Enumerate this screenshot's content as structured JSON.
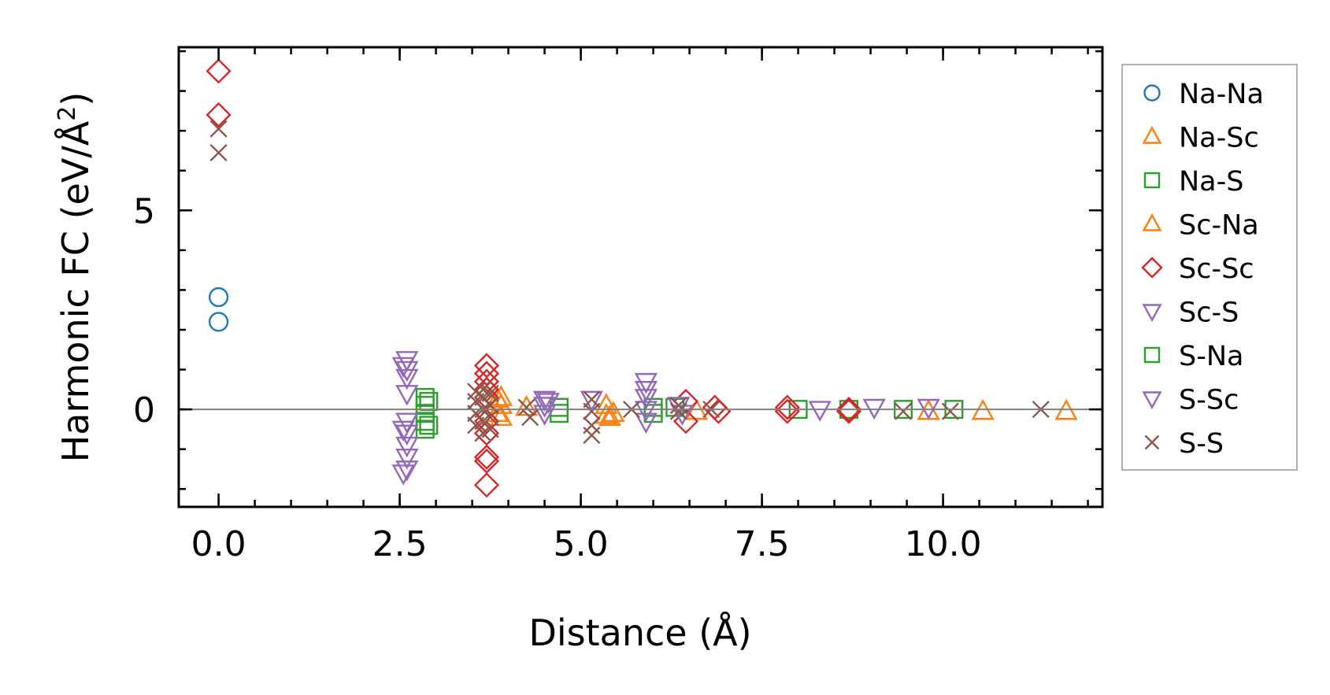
{
  "chart_data": {
    "type": "scatter",
    "title": "",
    "xlabel": "Distance (Å)",
    "ylabel_main": "Harmonic FC (eV/Å",
    "ylabel_sup": "2",
    "ylabel_close": ")",
    "xlim": [
      -0.55,
      12.2
    ],
    "ylim": [
      -2.45,
      9.1
    ],
    "xticks": [
      {
        "value": 0.0,
        "label": "0.0"
      },
      {
        "value": 2.5,
        "label": "2.5"
      },
      {
        "value": 5.0,
        "label": "5.0"
      },
      {
        "value": 7.5,
        "label": "7.5"
      },
      {
        "value": 10.0,
        "label": "10.0"
      }
    ],
    "yticks": [
      {
        "value": 0,
        "label": "0"
      },
      {
        "value": 5,
        "label": "5"
      }
    ],
    "x_minor_step": 0.5,
    "y_minor_step": 1,
    "zero_line": 0,
    "grid": false,
    "legend_position": "outside-right",
    "series": [
      {
        "name": "Na-Na",
        "marker": "circle",
        "color": "#1f77b4",
        "points": [
          [
            0,
            2.82
          ],
          [
            0,
            2.2
          ]
        ]
      },
      {
        "name": "Na-Sc",
        "marker": "triangle-up",
        "color": "#ff7f0e",
        "points": [
          [
            3.9,
            0.3
          ],
          [
            3.9,
            0.1
          ],
          [
            3.9,
            -0.2
          ],
          [
            4.25,
            0.05
          ],
          [
            5.35,
            0.1
          ],
          [
            5.35,
            -0.15
          ],
          [
            5.4,
            -0.2
          ],
          [
            6.6,
            -0.05
          ],
          [
            10.55,
            -0.05
          ],
          [
            11.7,
            -0.05
          ]
        ]
      },
      {
        "name": "Na-S",
        "marker": "square",
        "color": "#2ca02c",
        "points": [
          [
            2.85,
            0.3
          ],
          [
            2.85,
            0.1
          ],
          [
            2.85,
            -0.1
          ],
          [
            2.85,
            -0.3
          ],
          [
            2.85,
            -0.5
          ],
          [
            4.7,
            0.05
          ],
          [
            4.7,
            -0.1
          ],
          [
            6.0,
            0.05
          ],
          [
            6.0,
            -0.1
          ],
          [
            8.0,
            0.0
          ],
          [
            8.7,
            0.0
          ],
          [
            9.45,
            0.0
          ],
          [
            10.15,
            0.0
          ]
        ]
      },
      {
        "name": "Sc-Na",
        "marker": "triangle-up",
        "color": "#ff7f0e",
        "points": [
          [
            3.85,
            0.25
          ],
          [
            3.85,
            -0.1
          ],
          [
            5.45,
            -0.1
          ],
          [
            9.8,
            -0.05
          ]
        ]
      },
      {
        "name": "Sc-Sc",
        "marker": "diamond",
        "color": "#d62728",
        "points": [
          [
            0,
            8.5
          ],
          [
            0,
            7.4
          ],
          [
            3.7,
            1.1
          ],
          [
            3.7,
            0.9
          ],
          [
            3.7,
            0.7
          ],
          [
            3.7,
            0.5
          ],
          [
            3.7,
            0.3
          ],
          [
            3.7,
            -0.3
          ],
          [
            3.7,
            -0.6
          ],
          [
            3.7,
            -1.2
          ],
          [
            3.7,
            -1.3
          ],
          [
            3.7,
            -1.9
          ],
          [
            6.45,
            0.2
          ],
          [
            6.45,
            -0.3
          ],
          [
            6.85,
            0.05
          ],
          [
            6.9,
            -0.05
          ],
          [
            7.85,
            0.05
          ],
          [
            7.85,
            -0.05
          ],
          [
            8.7,
            0.0
          ],
          [
            8.7,
            -0.05
          ]
        ]
      },
      {
        "name": "Sc-S",
        "marker": "triangle-down",
        "color": "#9467bd",
        "points": [
          [
            2.6,
            1.25
          ],
          [
            2.6,
            1.0
          ],
          [
            2.6,
            0.8
          ],
          [
            2.6,
            0.4
          ],
          [
            2.6,
            -0.3
          ],
          [
            2.6,
            -0.6
          ],
          [
            2.6,
            -0.9
          ],
          [
            2.6,
            -1.2
          ],
          [
            2.6,
            -1.5
          ],
          [
            4.5,
            0.25
          ],
          [
            4.5,
            0.1
          ],
          [
            4.5,
            -0.1
          ],
          [
            5.9,
            0.7
          ],
          [
            5.9,
            0.5
          ],
          [
            5.9,
            0.3
          ],
          [
            5.9,
            0.0
          ],
          [
            5.9,
            -0.3
          ],
          [
            8.3,
            0.0
          ],
          [
            9.05,
            0.05
          ],
          [
            9.8,
            0.05
          ]
        ]
      },
      {
        "name": "S-Na",
        "marker": "square",
        "color": "#2ca02c",
        "points": [
          [
            2.9,
            0.2
          ],
          [
            2.9,
            -0.4
          ],
          [
            6.3,
            0.05
          ]
        ]
      },
      {
        "name": "S-Sc",
        "marker": "triangle-down",
        "color": "#9467bd",
        "points": [
          [
            2.55,
            1.1
          ],
          [
            2.55,
            -0.5
          ],
          [
            2.55,
            -1.6
          ],
          [
            4.55,
            0.2
          ],
          [
            5.15,
            0.25
          ],
          [
            6.35,
            0.1
          ],
          [
            6.4,
            -0.1
          ]
        ]
      },
      {
        "name": "S-S",
        "marker": "x",
        "color": "#8c564b",
        "points": [
          [
            0,
            7.05
          ],
          [
            0,
            6.45
          ],
          [
            3.55,
            0.45
          ],
          [
            3.55,
            0.2
          ],
          [
            3.55,
            -0.1
          ],
          [
            3.55,
            -0.4
          ],
          [
            3.65,
            0.5
          ],
          [
            3.65,
            0.3
          ],
          [
            3.65,
            0.0
          ],
          [
            3.65,
            -0.3
          ],
          [
            3.65,
            -0.6
          ],
          [
            3.75,
            0.4
          ],
          [
            3.75,
            0.1
          ],
          [
            3.75,
            -0.2
          ],
          [
            3.75,
            -0.5
          ],
          [
            4.25,
            0.05
          ],
          [
            4.3,
            -0.2
          ],
          [
            5.15,
            0.25
          ],
          [
            5.15,
            -0.05
          ],
          [
            5.15,
            -0.4
          ],
          [
            5.15,
            -0.65
          ],
          [
            5.7,
            0.0
          ],
          [
            6.35,
            0.1
          ],
          [
            6.35,
            -0.05
          ],
          [
            6.8,
            0.0
          ],
          [
            9.45,
            -0.05
          ],
          [
            10.1,
            -0.05
          ],
          [
            11.35,
            0.0
          ]
        ]
      }
    ]
  }
}
